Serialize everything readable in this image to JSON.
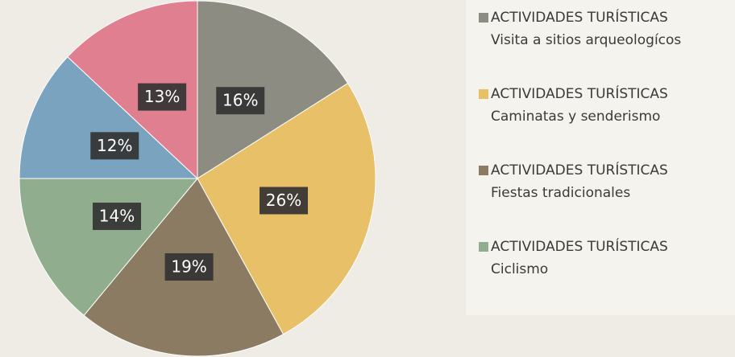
{
  "chart_data": {
    "type": "pie",
    "legend_heading": "ACTIVIDADES TURÍSTICAS",
    "categories": [
      "Visita a sitios arqueologícos",
      "Caminatas y senderismo",
      "Fiestas tradicionales",
      "Ciclismo",
      null,
      null
    ],
    "values": [
      16,
      26,
      19,
      14,
      12,
      13
    ],
    "value_labels": [
      "16%",
      "26%",
      "19%",
      "14%",
      "12%",
      "13%"
    ],
    "colors": [
      "#8c8c83",
      "#e8c067",
      "#8b7b62",
      "#90ae8e",
      "#7aa3c0",
      "#e07f90"
    ],
    "legend": "right"
  }
}
